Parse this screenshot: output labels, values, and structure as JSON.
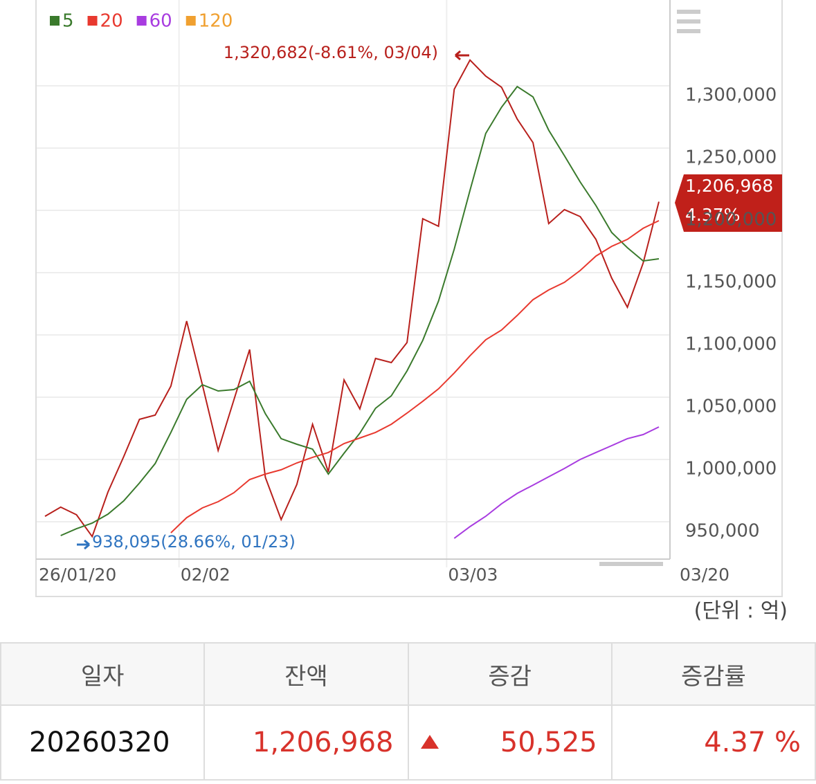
{
  "chart_data": {
    "type": "line",
    "categories": [
      "26/01/20",
      null,
      null,
      null,
      null,
      null,
      null,
      null,
      null,
      "02/02",
      null,
      null,
      null,
      null,
      null,
      null,
      null,
      null,
      null,
      null,
      null,
      null,
      null,
      null,
      null,
      null,
      "03/03",
      null,
      null,
      null,
      null,
      null,
      null,
      null,
      null,
      null,
      null,
      null,
      null,
      "03/20"
    ],
    "series": [
      {
        "color": "#b8201c",
        "values": [
          954400,
          961700,
          955600,
          938095,
          973900,
          1002200,
          1032200,
          1035600,
          1058900,
          1111100,
          1060000,
          1007200,
          1047800,
          1088300,
          985600,
          951700,
          980000,
          1028300,
          990000,
          1063900,
          1040600,
          1081100,
          1077800,
          1093900,
          1193300,
          1187200,
          1297200,
          1320682,
          1307800,
          1298900,
          1273300,
          1254400,
          1189400,
          1200600,
          1195000,
          1176700,
          1145600,
          1122200,
          1157800,
          1206968
        ]
      },
      {
        "name": "5",
        "color": "#3a7a2c",
        "values": [
          null,
          938900,
          944400,
          948900,
          956100,
          966700,
          981100,
          996700,
          1021700,
          1048300,
          1060000,
          1055000,
          1056100,
          1062800,
          1036700,
          1016700,
          1012200,
          1008300,
          988300,
          1005000,
          1021100,
          1041100,
          1051100,
          1071100,
          1095600,
          1127200,
          1168900,
          1216100,
          1261700,
          1282800,
          1299400,
          1291100,
          1264400,
          1243900,
          1222800,
          1203900,
          1182200,
          1170000,
          1159400,
          1161100
        ]
      },
      {
        "name": "20",
        "color": "#e8392f",
        "values": [
          null,
          null,
          null,
          null,
          null,
          null,
          null,
          null,
          941100,
          953300,
          961100,
          966100,
          973300,
          983900,
          988300,
          991700,
          997200,
          1001700,
          1005600,
          1012800,
          1017200,
          1021700,
          1028300,
          1037200,
          1046700,
          1056700,
          1069400,
          1083300,
          1096100,
          1103900,
          1115600,
          1128300,
          1136100,
          1142200,
          1151700,
          1163300,
          1171100,
          1176700,
          1185600,
          1191700
        ]
      },
      {
        "name": "60",
        "color": "#a83ce0",
        "values": [
          null,
          null,
          null,
          null,
          null,
          null,
          null,
          null,
          null,
          null,
          null,
          null,
          null,
          null,
          null,
          null,
          null,
          null,
          null,
          null,
          null,
          null,
          null,
          null,
          null,
          null,
          936700,
          946100,
          954400,
          964400,
          972800,
          979400,
          986100,
          992800,
          1000000,
          1005600,
          1011100,
          1016700,
          1020000,
          1026100
        ]
      },
      {
        "name": "120",
        "color": "#f0a030",
        "values": [
          null,
          null,
          null,
          null,
          null,
          null,
          null,
          null,
          null,
          null,
          null,
          null,
          null,
          null,
          null,
          null,
          null,
          null,
          null,
          null,
          null,
          null,
          null,
          null,
          null,
          null,
          null,
          null,
          null,
          null,
          null,
          null,
          null,
          null,
          null,
          null,
          null,
          null,
          null,
          null
        ]
      }
    ],
    "ylim": [
      920000,
      1368889
    ],
    "yticks": [
      {
        "value": 950000,
        "label": "950,000"
      },
      {
        "value": 1000000,
        "label": "1,000,000"
      },
      {
        "value": 1050000,
        "label": "1,050,000"
      },
      {
        "value": 1100000,
        "label": "1,100,000"
      },
      {
        "value": 1150000,
        "label": "1,150,000"
      },
      {
        "value": 1200000,
        "label": "1,200,000"
      },
      {
        "value": 1250000,
        "label": "1,250,000"
      },
      {
        "value": 1300000,
        "label": "1,300,000"
      }
    ],
    "grid": true,
    "max_label": "1,320,682(-8.61%, 03/04)",
    "min_label": "938,095(28.66%, 01/23)",
    "last_label": [
      "1,206,968",
      "4.37%"
    ],
    "unit_label": "(단위 : 억)"
  },
  "table": {
    "headers": [
      "일자",
      "잔액",
      "증감",
      "증감률"
    ],
    "rows": [
      [
        "20260320",
        "1,206,968",
        "50,525",
        "4.37 %"
      ]
    ]
  }
}
